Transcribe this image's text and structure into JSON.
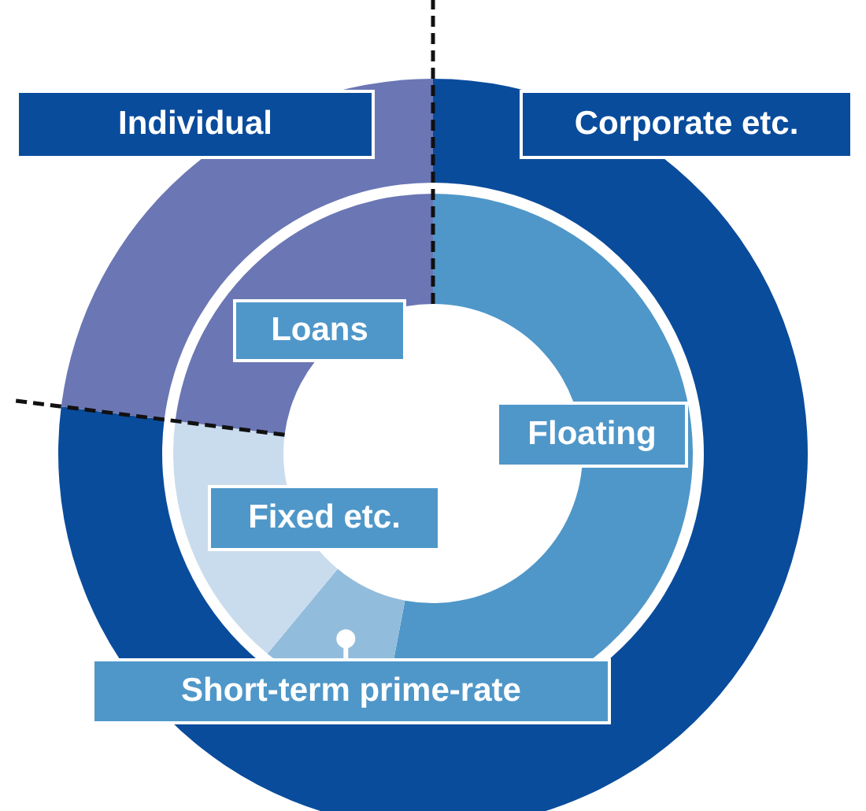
{
  "chart_data": [
    {
      "type": "donut",
      "categories": [
        "Corporate etc.",
        "Individual"
      ],
      "values": [
        77,
        23
      ],
      "colors": [
        "#0a4c9c",
        "#6b76b4"
      ]
    },
    {
      "type": "donut",
      "categories": [
        "Floating",
        "Short-term prime-rate",
        "Fixed etc.",
        "Loans"
      ],
      "values": [
        53,
        8,
        16,
        23
      ],
      "colors": [
        "#4f97c9",
        "#92bcdb",
        "#c9dced",
        "#6b76b4"
      ]
    }
  ]
}
